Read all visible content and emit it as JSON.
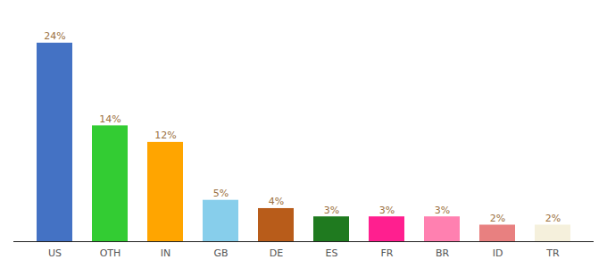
{
  "chart_data": {
    "type": "bar",
    "categories": [
      "US",
      "OTH",
      "IN",
      "GB",
      "DE",
      "ES",
      "FR",
      "BR",
      "ID",
      "TR"
    ],
    "values": [
      24,
      14,
      12,
      5,
      4,
      3,
      3,
      3,
      2,
      2
    ],
    "value_labels": [
      "24%",
      "14%",
      "12%",
      "5%",
      "4%",
      "3%",
      "3%",
      "3%",
      "2%",
      "2%"
    ],
    "colors": [
      "#4472C4",
      "#33CC33",
      "#FFA500",
      "#87CEEB",
      "#B85C1A",
      "#1F7A1F",
      "#FF1F8F",
      "#FF80B0",
      "#E88080",
      "#F5F0DC"
    ],
    "ylim": [
      0,
      27
    ],
    "data_labels": true,
    "tick_labels": "x",
    "grid": false
  }
}
